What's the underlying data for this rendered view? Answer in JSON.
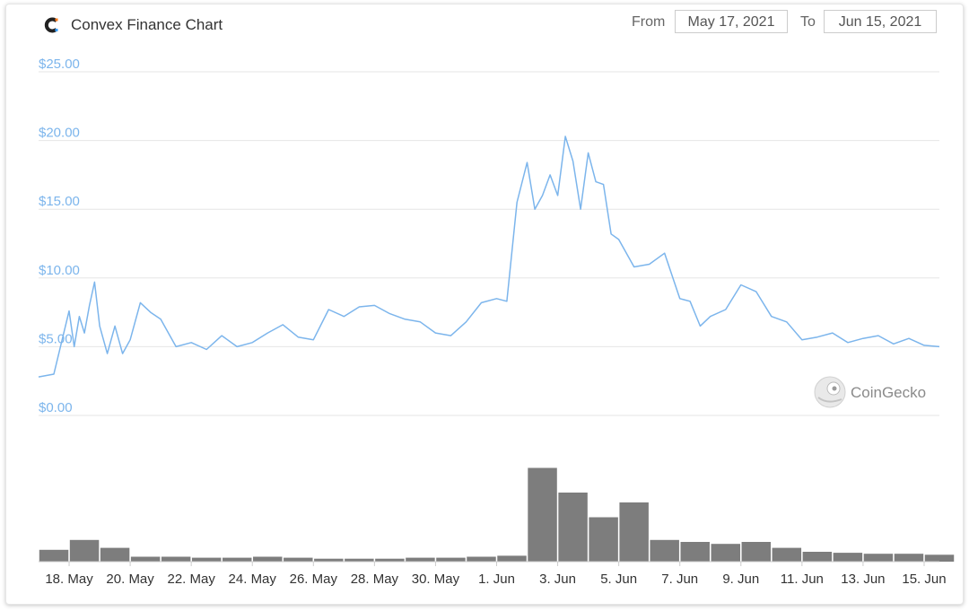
{
  "header": {
    "title": "Convex Finance Chart",
    "from_label": "From",
    "from_value": "May 17, 2021",
    "to_label": "To",
    "to_value": "Jun 15, 2021"
  },
  "watermark": {
    "text": "CoinGecko",
    "icon": "gecko-icon"
  },
  "colors": {
    "price_line": "#7cb5ec",
    "y_labels": "#7cb5ec",
    "volume_bars": "#666666",
    "grid": "#e6e6e6"
  },
  "chart_data": {
    "type": "line",
    "title": "Convex Finance Chart",
    "x_range": [
      "2021-05-17",
      "2021-06-15"
    ],
    "y_range": [
      0,
      25
    ],
    "y_ticks": [
      "$0.00",
      "$5.00",
      "$10.00",
      "$15.00",
      "$20.00",
      "$25.00"
    ],
    "x_ticks": [
      "18. May",
      "20. May",
      "22. May",
      "24. May",
      "26. May",
      "28. May",
      "30. May",
      "1. Jun",
      "3. Jun",
      "5. Jun",
      "7. Jun",
      "9. Jun",
      "11. Jun",
      "13. Jun",
      "15. Jun"
    ],
    "grid": true,
    "legend": "none",
    "series": [
      {
        "kind": "price",
        "x": [
          "2021-05-17",
          "2021-05-17",
          "2021-05-18",
          "2021-05-18",
          "2021-05-18",
          "2021-05-18",
          "2021-05-18",
          "2021-05-18",
          "2021-05-19",
          "2021-05-19",
          "2021-05-19",
          "2021-05-19",
          "2021-05-20",
          "2021-05-20",
          "2021-05-20",
          "2021-05-21",
          "2021-05-21",
          "2021-05-22",
          "2021-05-22",
          "2021-05-23",
          "2021-05-23",
          "2021-05-24",
          "2021-05-24",
          "2021-05-25",
          "2021-05-25",
          "2021-05-26",
          "2021-05-26",
          "2021-05-27",
          "2021-05-27",
          "2021-05-28",
          "2021-05-28",
          "2021-05-29",
          "2021-05-29",
          "2021-05-30",
          "2021-05-30",
          "2021-05-31",
          "2021-05-31",
          "2021-06-01",
          "2021-06-01",
          "2021-06-01",
          "2021-06-02",
          "2021-06-02",
          "2021-06-02",
          "2021-06-02",
          "2021-06-03",
          "2021-06-03",
          "2021-06-03",
          "2021-06-03",
          "2021-06-04",
          "2021-06-04",
          "2021-06-04",
          "2021-06-04",
          "2021-06-05",
          "2021-06-05",
          "2021-06-06",
          "2021-06-06",
          "2021-06-07",
          "2021-06-07",
          "2021-06-07",
          "2021-06-08",
          "2021-06-08",
          "2021-06-09",
          "2021-06-09",
          "2021-06-10",
          "2021-06-10",
          "2021-06-11",
          "2021-06-11",
          "2021-06-12",
          "2021-06-12",
          "2021-06-13",
          "2021-06-13",
          "2021-06-14",
          "2021-06-14",
          "2021-06-15",
          "2021-06-15"
        ],
        "values": [
          2.8,
          3.0,
          7.6,
          5.0,
          7.2,
          6.0,
          8.0,
          9.7,
          6.5,
          4.5,
          6.5,
          4.5,
          5.5,
          8.2,
          7.5,
          7.0,
          5.0,
          5.3,
          4.8,
          5.8,
          5.0,
          5.3,
          6.0,
          6.6,
          5.7,
          5.5,
          7.7,
          7.2,
          7.9,
          8.0,
          7.4,
          7.0,
          6.8,
          6.0,
          5.8,
          6.8,
          8.2,
          8.5,
          8.3,
          15.5,
          18.4,
          15.0,
          16.0,
          17.5,
          16.0,
          20.3,
          18.5,
          15.0,
          19.1,
          17.0,
          16.8,
          13.2,
          12.8,
          10.8,
          11.0,
          11.8,
          8.5,
          8.3,
          6.5,
          7.2,
          7.7,
          9.5,
          9.0,
          7.2,
          6.8,
          5.5,
          5.7,
          6.0,
          5.3,
          5.6,
          5.8,
          5.2,
          5.6,
          5.1,
          5.0
        ]
      },
      {
        "kind": "volume",
        "x": [
          "2021-05-17",
          "2021-05-18",
          "2021-05-19",
          "2021-05-20",
          "2021-05-21",
          "2021-05-22",
          "2021-05-23",
          "2021-05-24",
          "2021-05-25",
          "2021-05-26",
          "2021-05-27",
          "2021-05-28",
          "2021-05-29",
          "2021-05-30",
          "2021-05-31",
          "2021-06-01",
          "2021-06-02",
          "2021-06-03",
          "2021-06-04",
          "2021-06-05",
          "2021-06-06",
          "2021-06-07",
          "2021-06-08",
          "2021-06-09",
          "2021-06-10",
          "2021-06-11",
          "2021-06-12",
          "2021-06-13",
          "2021-06-14",
          "2021-06-15"
        ],
        "values": [
          0.12,
          0.22,
          0.14,
          0.05,
          0.05,
          0.04,
          0.04,
          0.05,
          0.04,
          0.03,
          0.03,
          0.03,
          0.04,
          0.04,
          0.05,
          0.06,
          0.95,
          0.7,
          0.45,
          0.6,
          0.22,
          0.2,
          0.18,
          0.2,
          0.14,
          0.1,
          0.09,
          0.08,
          0.08,
          0.07
        ]
      }
    ]
  }
}
